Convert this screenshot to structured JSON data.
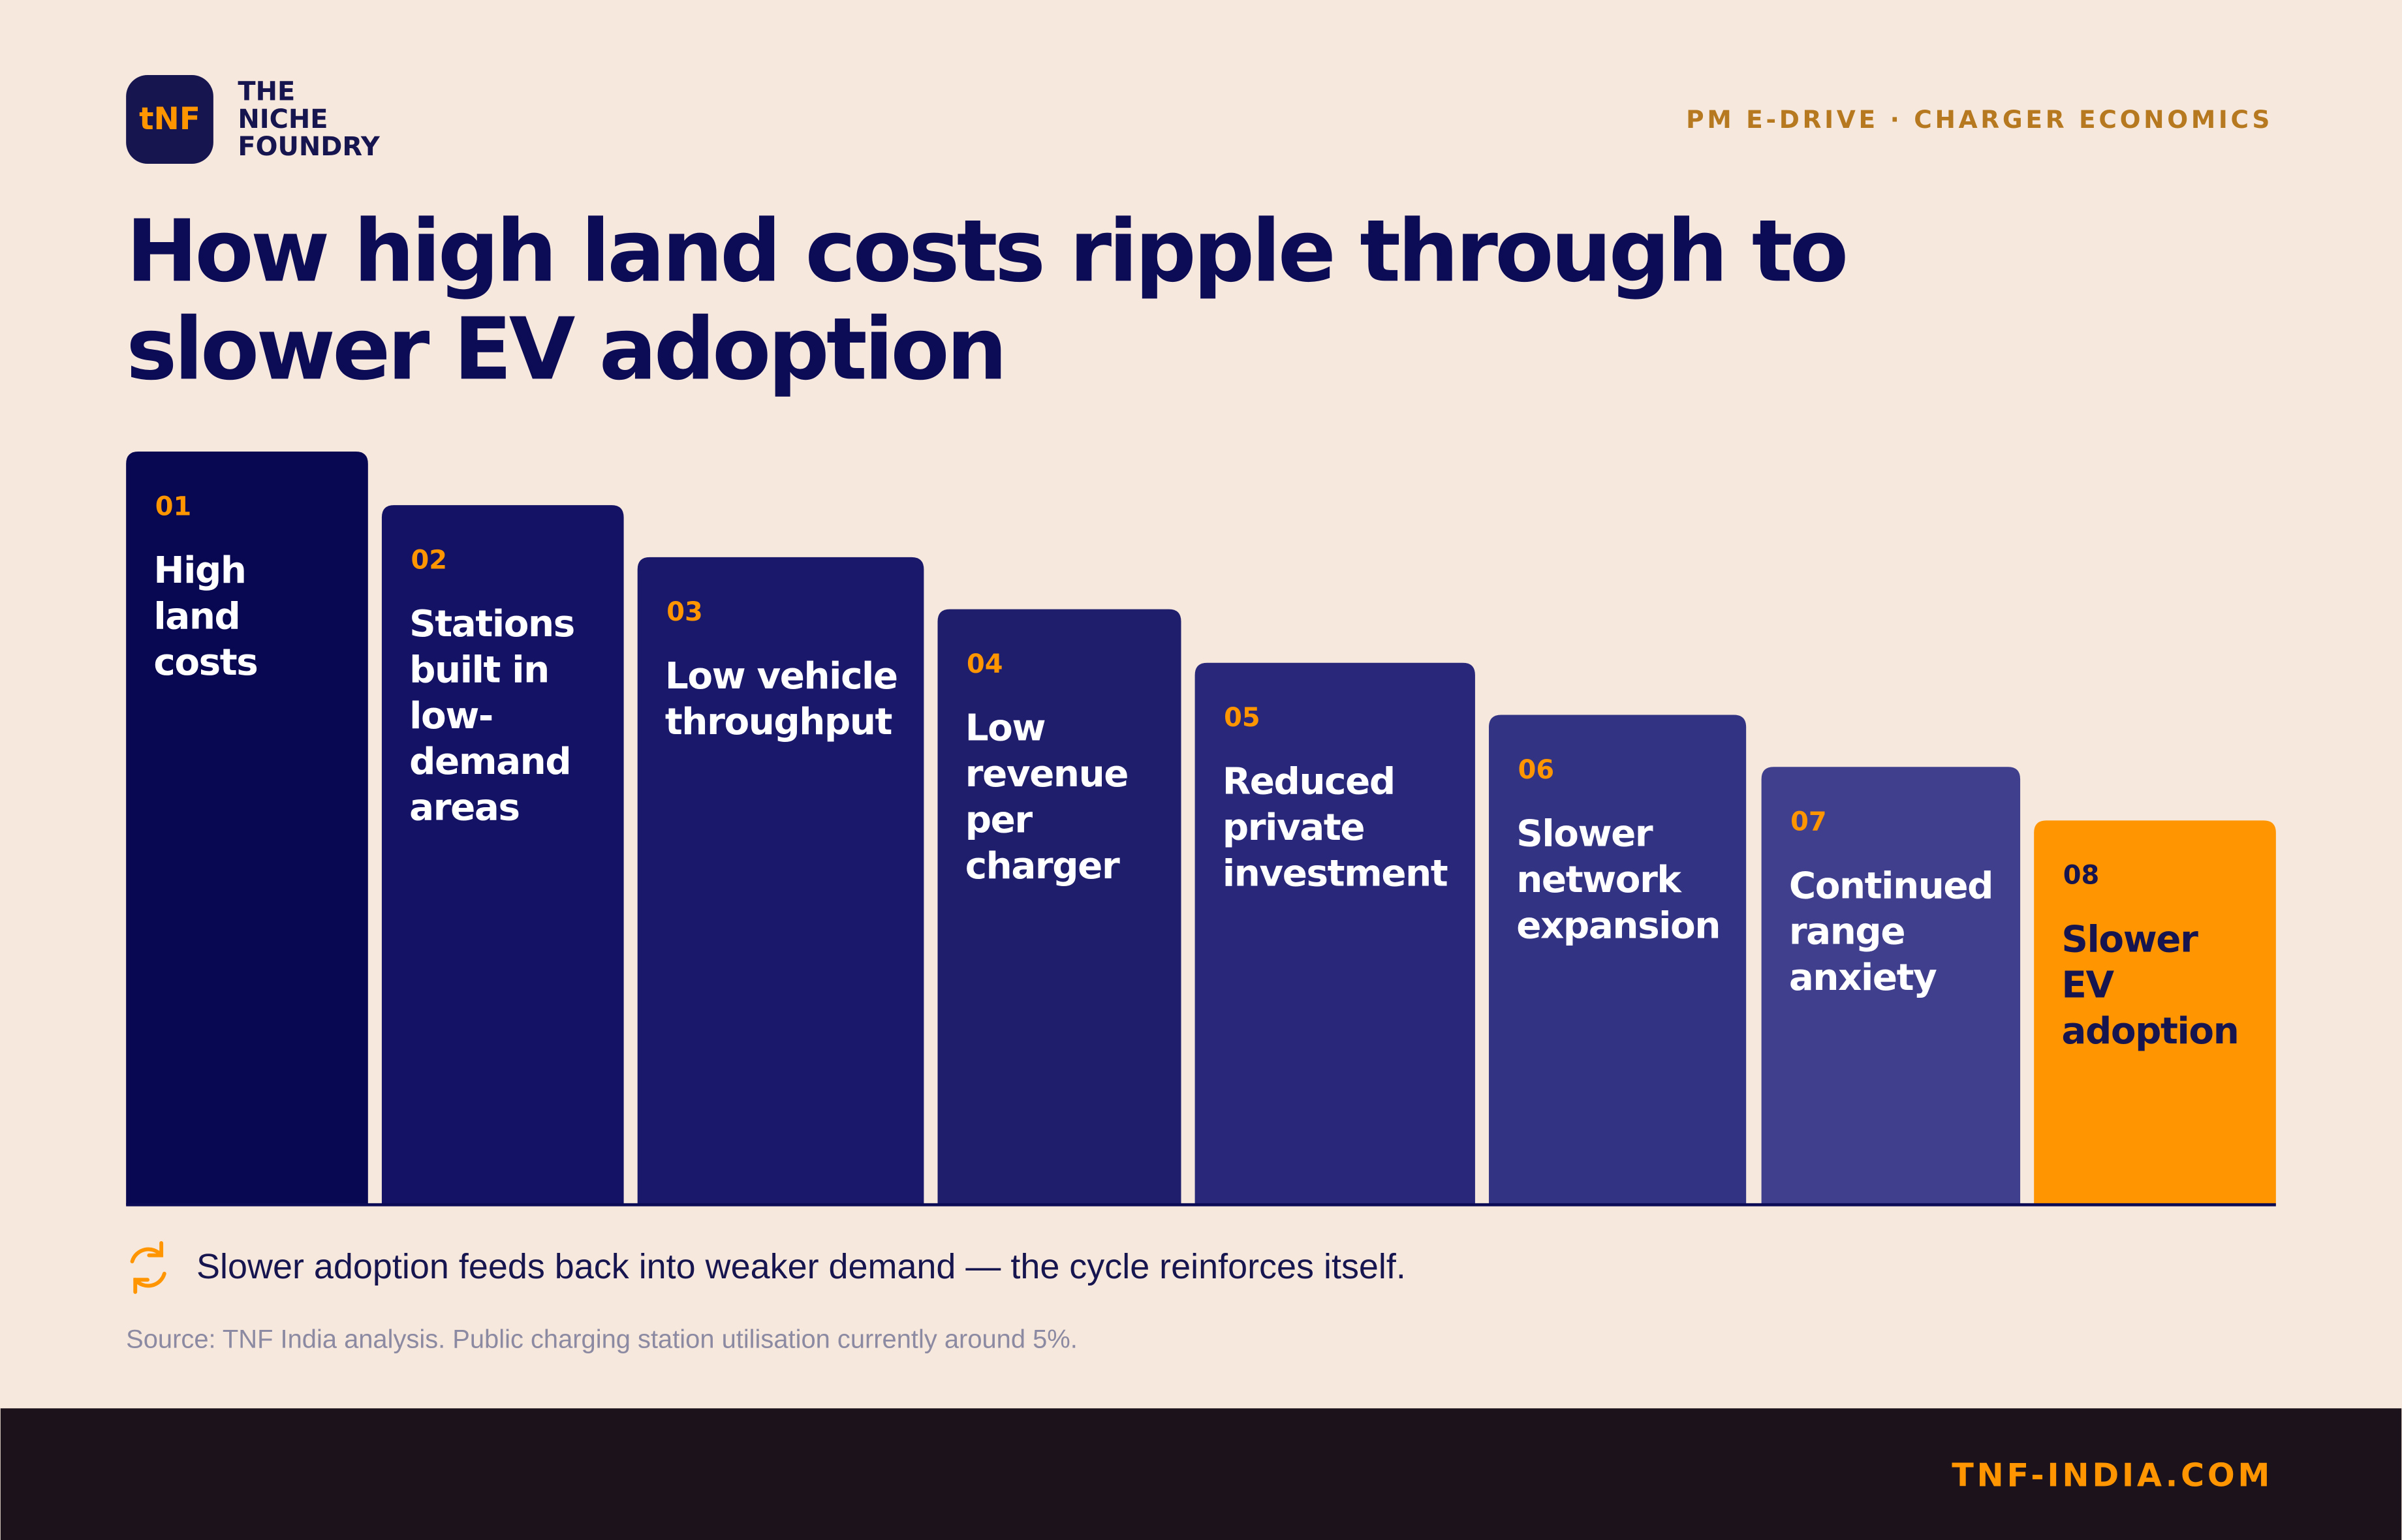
{
  "header": {
    "logo": "tNF",
    "brand_lines": [
      "THE",
      "NICHE",
      "FOUNDRY"
    ],
    "tag": "PM E-DRIVE · CHARGER ECONOMICS"
  },
  "title_lines": [
    "How high land costs ripple through to",
    "slower EV adoption"
  ],
  "steps": [
    {
      "number": "01",
      "lines": [
        "High",
        "land",
        "costs"
      ]
    },
    {
      "number": "02",
      "lines": [
        "Stations",
        "built in",
        "low-",
        "demand",
        "areas"
      ]
    },
    {
      "number": "03",
      "lines": [
        "Low vehicle",
        "throughput"
      ]
    },
    {
      "number": "04",
      "lines": [
        "Low",
        "revenue",
        "per",
        "charger"
      ]
    },
    {
      "number": "05",
      "lines": [
        "Reduced",
        "private",
        "investment"
      ]
    },
    {
      "number": "06",
      "lines": [
        "Slower",
        "network",
        "expansion"
      ]
    },
    {
      "number": "07",
      "lines": [
        "Continued",
        "range",
        "anxiety"
      ]
    },
    {
      "number": "08",
      "lines": [
        "Slower",
        "EV",
        "adoption"
      ]
    }
  ],
  "note": "Slower adoption feeds back into weaker demand — the cycle reinforces itself.",
  "source": "Source: TNF India analysis. Public charging station utilisation currently around 5%.",
  "footer": "TNF-INDIA.COM"
}
